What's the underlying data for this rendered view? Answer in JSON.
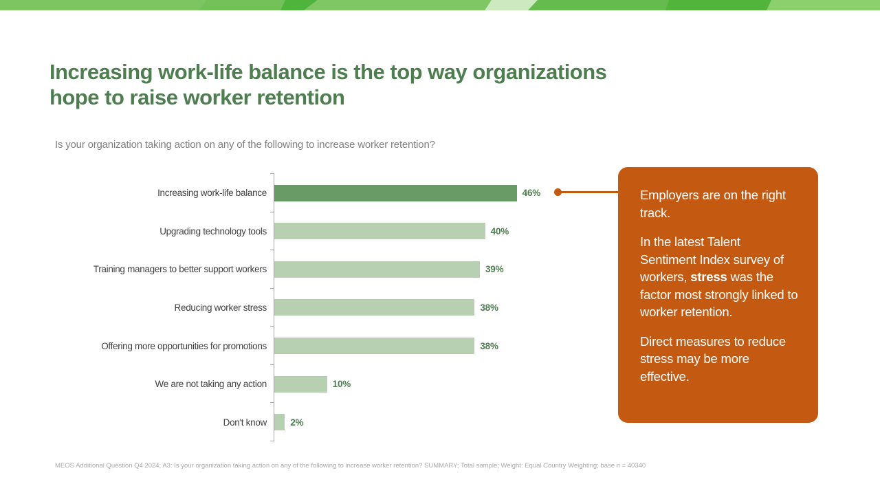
{
  "slide": {
    "title_line1": "Increasing work-life balance is the top way organizations",
    "title_line2": "hope to raise worker retention",
    "subtitle": "Is your organization taking action on any of the following to increase worker retention?",
    "footnote": "MEOS Additional Question Q4 2024; A3: Is your organization taking action on any of the following to increase worker retention? SUMMARY; Total sample; Weight: Equal Country Weighting; base n = 40340"
  },
  "chart_data": {
    "type": "bar",
    "orientation": "horizontal",
    "title": "Is your organization taking action on any of the following to increase worker retention?",
    "categories": [
      "Increasing work-life balance",
      "Upgrading technology tools",
      "Training managers to better support workers",
      "Reducing worker stress",
      "Offering more opportunities for promotions",
      "We are not taking any action",
      "Don't know"
    ],
    "values": [
      46,
      40,
      39,
      38,
      38,
      10,
      2
    ],
    "value_labels": [
      "46%",
      "40%",
      "39%",
      "38%",
      "38%",
      "10%",
      "2%"
    ],
    "xlim": [
      0,
      60
    ],
    "grid": false,
    "legend": false,
    "highlight_index": 0,
    "colors": {
      "bar": "#b7d0b2",
      "bar_highlight": "#699b66",
      "value_label": "#4e7d50",
      "axis": "#a6a6a6"
    }
  },
  "callout": {
    "bg_color": "#c45911",
    "p1": "Employers are on the right track.",
    "p2_before": "In the latest Talent Sentiment Index survey of workers, ",
    "p2_bold": "stress",
    "p2_after": " was the factor most strongly linked to worker retention.",
    "p3": "Direct measures to reduce stress may be more effective."
  },
  "decor": {
    "band_colors": [
      "#7cc561",
      "#74c15a",
      "#4fb43c",
      "#7fc764",
      "#cde9c0",
      "#66bb4e",
      "#52b43b",
      "#8bd06d"
    ]
  }
}
